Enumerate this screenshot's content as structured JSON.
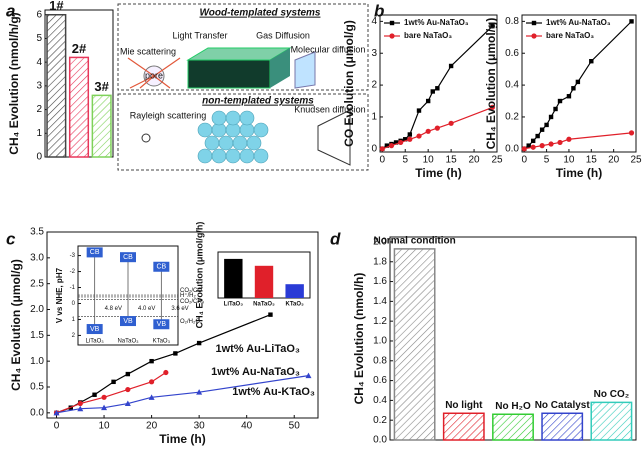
{
  "chart_data": [
    {
      "type": "bar",
      "panel": "a",
      "categories": [
        "1#",
        "2#",
        "3#"
      ],
      "values": [
        6,
        4.2,
        2.6
      ],
      "colors": [
        "#444444",
        "#e8375a",
        "#7fd25a"
      ],
      "ylim": [
        0,
        6.2
      ],
      "yticks": [
        0,
        1,
        2,
        3,
        4,
        5,
        6
      ],
      "ylabel": "CH₄ Evolution (nmol/h/g)",
      "category_labels": "above",
      "annotations": [
        "Wood-templated systems",
        "Light Transfer",
        "Gas Diffusion",
        "Mie scattering",
        "pore",
        "Molecular diffusion",
        "non-templated systems",
        "Rayleigh scattering",
        "Knudsen diffusion"
      ]
    },
    {
      "type": "line",
      "panel": "b",
      "xlabel": "Time (h)",
      "ylabel": "CO Evolution (μmol/g)",
      "xlim": [
        -0.5,
        25
      ],
      "xticks": [
        0,
        5,
        10,
        15,
        20,
        25
      ],
      "ylim": [
        -0.1,
        4.2
      ],
      "yticks": [
        0,
        1,
        2,
        3,
        4
      ],
      "legend": "upper left",
      "series": [
        {
          "name": "1wt% Au-NaTaO₃",
          "color": "#000000",
          "marker": "square",
          "x": [
            0,
            1,
            2,
            3,
            4,
            5,
            6,
            8,
            10,
            11,
            12,
            15,
            24
          ],
          "values": [
            0,
            0.1,
            0.15,
            0.2,
            0.25,
            0.3,
            0.45,
            1.2,
            1.5,
            1.8,
            1.9,
            2.6,
            3.85
          ]
        },
        {
          "name": "bare NaTaO₃",
          "color": "#e0202a",
          "marker": "circle",
          "x": [
            0,
            2,
            4,
            6,
            8,
            10,
            12,
            15,
            24
          ],
          "values": [
            0,
            0.1,
            0.2,
            0.3,
            0.4,
            0.55,
            0.65,
            0.8,
            1.3
          ]
        }
      ]
    },
    {
      "type": "line",
      "xlabel": "Time (h)",
      "ylabel": "CH₄ Evolution (μmol/g)",
      "xlim": [
        -0.5,
        25
      ],
      "xticks": [
        0,
        5,
        10,
        15,
        20,
        25
      ],
      "ylim": [
        -0.02,
        0.84
      ],
      "yticks": [
        {
          "value": 0,
          "label": "0.0"
        },
        {
          "value": 0.2,
          "label": "0.2"
        },
        {
          "value": 0.4,
          "label": "0.4"
        },
        {
          "value": 0.6,
          "label": "0.6"
        },
        {
          "value": 0.8,
          "label": "0.8"
        }
      ],
      "legend": "upper left",
      "series": [
        {
          "name": "1wt% Au-NaTaO₃",
          "color": "#000000",
          "marker": "square",
          "x": [
            0,
            1,
            2,
            3,
            4,
            5,
            6,
            7,
            8,
            10,
            11,
            12,
            15,
            24
          ],
          "values": [
            0,
            0.02,
            0.05,
            0.08,
            0.12,
            0.15,
            0.2,
            0.25,
            0.3,
            0.33,
            0.38,
            0.42,
            0.55,
            0.8
          ]
        },
        {
          "name": "bare NaTaO₃",
          "color": "#e0202a",
          "marker": "circle",
          "x": [
            0,
            2,
            4,
            6,
            8,
            10,
            24
          ],
          "values": [
            0,
            0.01,
            0.02,
            0.03,
            0.04,
            0.06,
            0.1
          ]
        }
      ]
    },
    {
      "type": "line",
      "panel": "c",
      "xlabel": "Time (h)",
      "ylabel": "CH₄ Evolution (μmol/g)",
      "xlim": [
        -2,
        55
      ],
      "xticks": [
        0,
        10,
        20,
        30,
        40,
        50
      ],
      "ylim": [
        -0.1,
        3.5
      ],
      "yticks": [
        {
          "value": 0,
          "label": "0.0"
        },
        {
          "value": 0.5,
          "label": "0.5"
        },
        {
          "value": 1,
          "label": "1.0"
        },
        {
          "value": 1.5,
          "label": "1.5"
        },
        {
          "value": 2,
          "label": "2.0"
        },
        {
          "value": 2.5,
          "label": "2.5"
        },
        {
          "value": 3,
          "label": "3.0"
        },
        {
          "value": 3.5,
          "label": "3.5"
        }
      ],
      "legend": "inline",
      "series": [
        {
          "name": "1wt% Au-LiTaO₃",
          "color": "#000000",
          "marker": "square",
          "x": [
            0,
            3,
            5,
            8,
            12,
            15,
            20,
            25,
            30,
            45
          ],
          "values": [
            0,
            0.1,
            0.2,
            0.35,
            0.6,
            0.75,
            1.0,
            1.15,
            1.35,
            1.9
          ]
        },
        {
          "name": "1wt% Au-NaTaO₃",
          "color": "#e0202a",
          "marker": "circle",
          "x": [
            0,
            5,
            10,
            15,
            20,
            23
          ],
          "values": [
            0,
            0.18,
            0.3,
            0.45,
            0.6,
            0.78
          ]
        },
        {
          "name": "1wt% Au-KTaO₃",
          "color": "#3344cc",
          "marker": "triangle",
          "x": [
            0,
            5,
            10,
            15,
            20,
            30,
            53
          ],
          "values": [
            0,
            0.08,
            0.1,
            0.18,
            0.3,
            0.4,
            0.72
          ]
        }
      ]
    },
    {
      "type": "bar",
      "categories": [
        "LiTaO₃",
        "NaTaO₃",
        "KTaO₃"
      ],
      "values": [
        0.85,
        0.7,
        0.3
      ],
      "colors": [
        "#000000",
        "#e0202a",
        "#2a3bd6"
      ],
      "solid": true,
      "ylim": [
        0,
        1
      ],
      "ylabel": "CH₄ Evolution (μmol/g/h)",
      "category_labels": "below"
    },
    {
      "type": "band",
      "categories": [
        "LiTaO₃",
        "NaTaO₃",
        "KTaO₃"
      ],
      "cb": [
        -3.2,
        -2.9,
        -2.3
      ],
      "vb": [
        1.6,
        1.1,
        1.3
      ],
      "cb_label": "CB",
      "vb_label": "VB",
      "gap": [
        4.8,
        4.0,
        3.6
      ],
      "gap_labels": [
        "4.8 eV",
        "4.0 eV",
        "3.6 eV"
      ],
      "invert_y": true,
      "ylim": [
        -3.6,
        2.6
      ],
      "yticks": [
        -3,
        -2,
        -1,
        0,
        1,
        2
      ],
      "ylabel": "V vs NHE, pH7",
      "levels": [
        {
          "label": "CO₂/CO",
          "value": -0.53
        },
        {
          "label": "H⁺/H₂",
          "value": -0.41
        },
        {
          "label": "CO₂/CH₄",
          "value": -0.24
        },
        {
          "label": "O₂/H₂O",
          "value": 0.82
        }
      ]
    },
    {
      "type": "bar",
      "panel": "d",
      "categories": [
        "Normal condition",
        "No light",
        "No H₂O",
        "No Catalyst",
        "No CO₂"
      ],
      "values": [
        1.93,
        0.27,
        0.26,
        0.27,
        0.38
      ],
      "colors": [
        "#888888",
        "#e0202a",
        "#33cc33",
        "#3344cc",
        "#33ccbb"
      ],
      "ylim": [
        0,
        2.05
      ],
      "ylabel": "CH₄ Evolution (nmol/h)",
      "category_labels": "above",
      "yticks": [
        {
          "value": 0,
          "label": "0.0"
        },
        {
          "value": 0.2,
          "label": "0.2"
        },
        {
          "value": 0.4,
          "label": "0.4"
        },
        {
          "value": 0.6,
          "label": "0.6"
        },
        {
          "value": 0.8,
          "label": "0.8"
        },
        {
          "value": 1,
          "label": "1.0"
        },
        {
          "value": 1.2,
          "label": "1.2"
        },
        {
          "value": 1.4,
          "label": "1.4"
        },
        {
          "value": 1.6,
          "label": "1.6"
        },
        {
          "value": 1.8,
          "label": "1.8"
        },
        {
          "value": 2,
          "label": "2.0"
        }
      ]
    }
  ]
}
